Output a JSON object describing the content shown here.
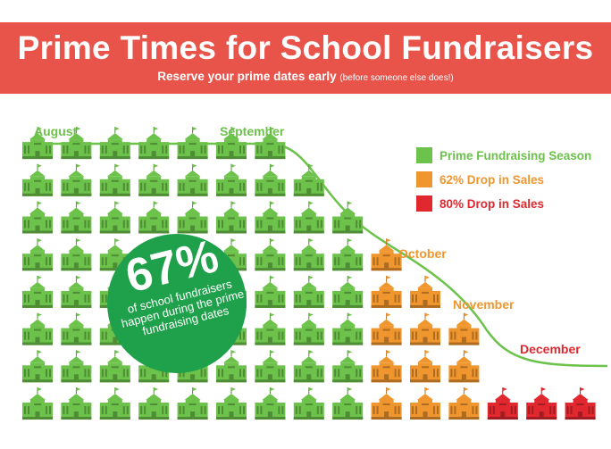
{
  "header": {
    "title": "Prime Times for School Fundraisers",
    "subtitle": "Reserve your prime dates early",
    "subtitle_note": "(before someone else does!)"
  },
  "badge": {
    "percent": "67%",
    "text": "of school fundraisers happen during the prime fundraising dates"
  },
  "colors": {
    "banner": "#e8534a",
    "prime": "#6cc24a",
    "drop62": "#f0962e",
    "drop80": "#e0282e",
    "badge": "#1ea14a",
    "curve": "#6cc24a"
  },
  "chart_data": {
    "type": "pictograph",
    "rows": 8,
    "columns": [
      {
        "month": "August",
        "icons": 8,
        "category": "Prime Fundraising Season"
      },
      {
        "month": "",
        "icons": 8,
        "category": "Prime Fundraising Season"
      },
      {
        "month": "",
        "icons": 8,
        "category": "Prime Fundraising Season"
      },
      {
        "month": "",
        "icons": 8,
        "category": "Prime Fundraising Season"
      },
      {
        "month": "",
        "icons": 8,
        "category": "Prime Fundraising Season"
      },
      {
        "month": "",
        "icons": 8,
        "category": "Prime Fundraising Season"
      },
      {
        "month": "September",
        "icons": 8,
        "category": "Prime Fundraising Season"
      },
      {
        "month": "",
        "icons": 7,
        "category": "Prime Fundraising Season"
      },
      {
        "month": "",
        "icons": 6,
        "category": "Prime Fundraising Season"
      },
      {
        "month": "October",
        "icons": 5,
        "category": "62% Drop in Sales"
      },
      {
        "month": "",
        "icons": 4,
        "category": "62% Drop in Sales"
      },
      {
        "month": "November",
        "icons": 3,
        "category": "62% Drop in Sales"
      },
      {
        "month": "",
        "icons": 1,
        "category": "80% Drop in Sales"
      },
      {
        "month": "",
        "icons": 1,
        "category": "80% Drop in Sales"
      },
      {
        "month": "December",
        "icons": 1,
        "category": "80% Drop in Sales"
      }
    ],
    "months": [
      {
        "label": "August",
        "color": "#6cc24a"
      },
      {
        "label": "September",
        "color": "#6cc24a"
      },
      {
        "label": "October",
        "color": "#f0962e"
      },
      {
        "label": "November",
        "color": "#f0962e"
      },
      {
        "label": "December",
        "color": "#e0282e"
      }
    ],
    "legend": [
      {
        "label": "Prime Fundraising Season",
        "color": "#6cc24a"
      },
      {
        "label": "62% Drop in Sales",
        "color": "#f0962e"
      },
      {
        "label": "80% Drop in Sales",
        "color": "#e0282e"
      }
    ],
    "legend_position": "top-right"
  }
}
